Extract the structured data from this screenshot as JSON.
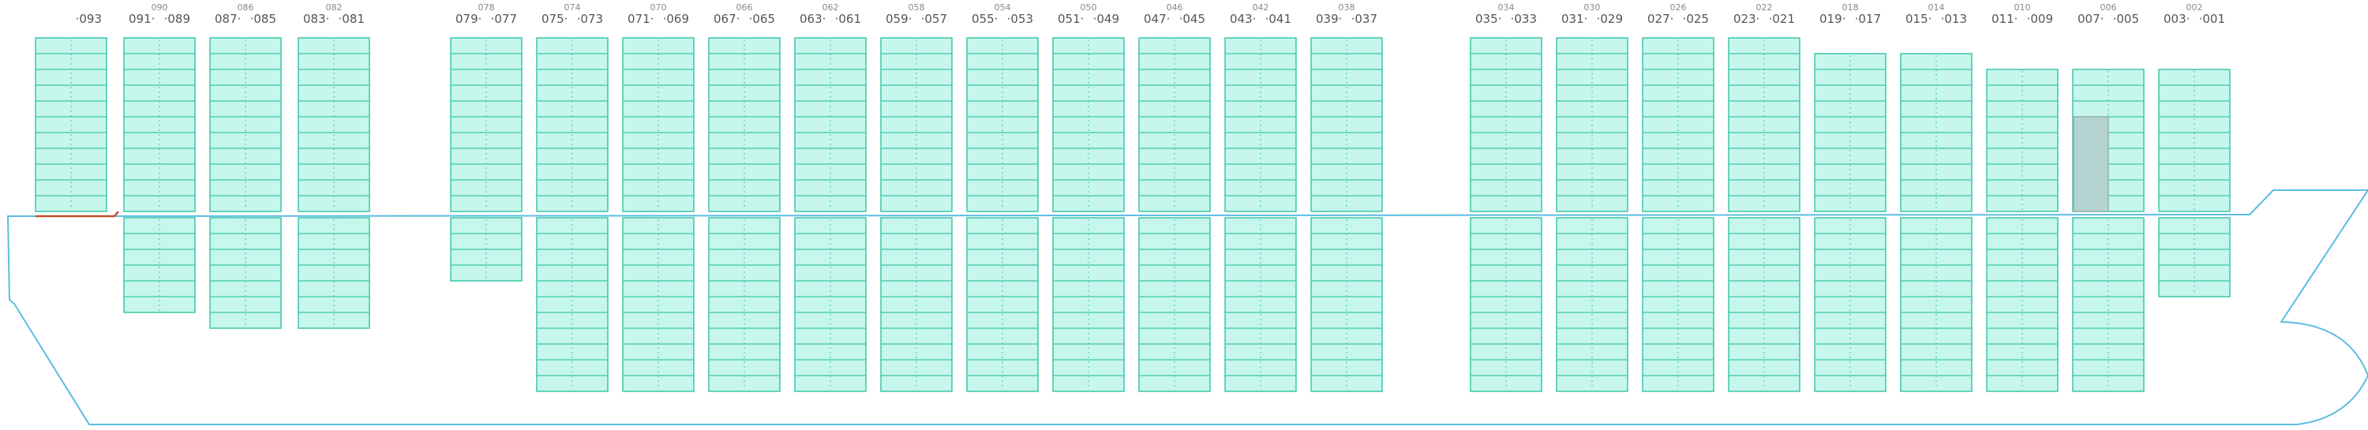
{
  "app": {
    "view": "vessel bay plan (side profile)"
  },
  "colors": {
    "hull_line": "#5bbde0",
    "slot_fill": "#c6f6ec",
    "slot_stroke": "#3cc7a8",
    "slot_rowline": "#3cc7a8",
    "slot_divider": "#3cc7a8",
    "selected_fill": "#b4d3d0",
    "selected_stroke": "#8fa9a7",
    "mooring_line": "#c0522a",
    "label_text": "#555555",
    "label_text_faint": "#888888"
  },
  "bays": [
    {
      "id": "bay-093",
      "top_label": "",
      "fwd_label": "",
      "aft_label": "093",
      "deck_tiers": 11,
      "hold_tiers": 0
    },
    {
      "id": "bay-090",
      "top_label": "090",
      "fwd_label": "091",
      "aft_label": "089",
      "deck_tiers": 11,
      "hold_tiers": 6
    },
    {
      "id": "bay-086",
      "top_label": "086",
      "fwd_label": "087",
      "aft_label": "085",
      "deck_tiers": 11,
      "hold_tiers": 7
    },
    {
      "id": "bay-082",
      "top_label": "082",
      "fwd_label": "083",
      "aft_label": "081",
      "deck_tiers": 11,
      "hold_tiers": 7
    },
    {
      "id": "bay-078",
      "top_label": "078",
      "fwd_label": "079",
      "aft_label": "077",
      "deck_tiers": 11,
      "hold_tiers": 4
    },
    {
      "id": "bay-074",
      "top_label": "074",
      "fwd_label": "075",
      "aft_label": "073",
      "deck_tiers": 11,
      "hold_tiers": 11
    },
    {
      "id": "bay-070",
      "top_label": "070",
      "fwd_label": "071",
      "aft_label": "069",
      "deck_tiers": 11,
      "hold_tiers": 11
    },
    {
      "id": "bay-066",
      "top_label": "066",
      "fwd_label": "067",
      "aft_label": "065",
      "deck_tiers": 11,
      "hold_tiers": 11
    },
    {
      "id": "bay-062",
      "top_label": "062",
      "fwd_label": "063",
      "aft_label": "061",
      "deck_tiers": 11,
      "hold_tiers": 11
    },
    {
      "id": "bay-058",
      "top_label": "058",
      "fwd_label": "059",
      "aft_label": "057",
      "deck_tiers": 11,
      "hold_tiers": 11
    },
    {
      "id": "bay-054",
      "top_label": "054",
      "fwd_label": "055",
      "aft_label": "053",
      "deck_tiers": 11,
      "hold_tiers": 11
    },
    {
      "id": "bay-050",
      "top_label": "050",
      "fwd_label": "051",
      "aft_label": "049",
      "deck_tiers": 11,
      "hold_tiers": 11
    },
    {
      "id": "bay-046",
      "top_label": "046",
      "fwd_label": "047",
      "aft_label": "045",
      "deck_tiers": 11,
      "hold_tiers": 11
    },
    {
      "id": "bay-042",
      "top_label": "042",
      "fwd_label": "043",
      "aft_label": "041",
      "deck_tiers": 11,
      "hold_tiers": 11
    },
    {
      "id": "bay-038",
      "top_label": "038",
      "fwd_label": "039",
      "aft_label": "037",
      "deck_tiers": 11,
      "hold_tiers": 11
    },
    {
      "id": "bay-034",
      "top_label": "034",
      "fwd_label": "035",
      "aft_label": "033",
      "deck_tiers": 11,
      "hold_tiers": 11
    },
    {
      "id": "bay-030",
      "top_label": "030",
      "fwd_label": "031",
      "aft_label": "029",
      "deck_tiers": 11,
      "hold_tiers": 11
    },
    {
      "id": "bay-026",
      "top_label": "026",
      "fwd_label": "027",
      "aft_label": "025",
      "deck_tiers": 11,
      "hold_tiers": 11
    },
    {
      "id": "bay-022",
      "top_label": "022",
      "fwd_label": "023",
      "aft_label": "021",
      "deck_tiers": 11,
      "hold_tiers": 11
    },
    {
      "id": "bay-018",
      "top_label": "018",
      "fwd_label": "019",
      "aft_label": "017",
      "deck_tiers": 10,
      "hold_tiers": 11
    },
    {
      "id": "bay-014",
      "top_label": "014",
      "fwd_label": "015",
      "aft_label": "013",
      "deck_tiers": 10,
      "hold_tiers": 11
    },
    {
      "id": "bay-010",
      "top_label": "010",
      "fwd_label": "011",
      "aft_label": "009",
      "deck_tiers": 9,
      "hold_tiers": 11
    },
    {
      "id": "bay-006",
      "top_label": "006",
      "fwd_label": "007",
      "aft_label": "005",
      "deck_tiers": 9,
      "hold_tiers": 11,
      "selected_fwd_deck_tiers": 6
    },
    {
      "id": "bay-002",
      "top_label": "002",
      "fwd_label": "003",
      "aft_label": "001",
      "deck_tiers": 9,
      "hold_tiers": 5
    }
  ]
}
